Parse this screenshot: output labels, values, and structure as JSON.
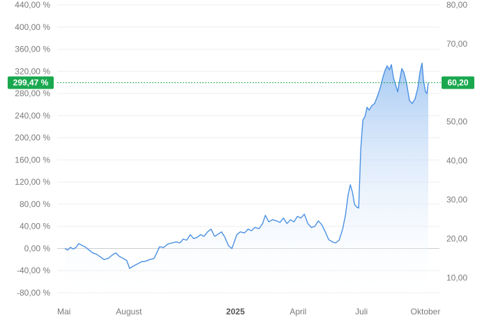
{
  "colors": {
    "line": "#4a90e2",
    "fill_top": "#9cc3f2",
    "fill_bottom": "#ffffff",
    "badge": "#1aa84f",
    "grid": "#eeeeee",
    "zero_line": "#cccccc"
  },
  "chart_data": {
    "type": "area",
    "grid": "horizontal",
    "left_axis": {
      "unit": "%",
      "ylim": [
        -80,
        440
      ],
      "ticks": [
        "440,00 %",
        "400,00 %",
        "360,00 %",
        "320,00 %",
        "280,00 %",
        "240,00 %",
        "200,00 %",
        "160,00 %",
        "120,00 %",
        "80,00 %",
        "40,00 %",
        "0,00 %",
        "-40,00 %",
        "-80,00 %"
      ],
      "tick_values": [
        440,
        400,
        360,
        320,
        280,
        240,
        200,
        160,
        120,
        80,
        40,
        0,
        -40,
        -80
      ]
    },
    "right_axis": {
      "ylim": [
        6.12,
        80.0
      ],
      "ticks": [
        "80,00",
        "70,00",
        "60,00",
        "50,00",
        "40,00",
        "30,00",
        "20,00",
        "10,00"
      ],
      "tick_values": [
        80,
        70,
        60,
        50,
        40,
        30,
        20,
        10
      ]
    },
    "x_axis": {
      "ticks": [
        {
          "label": "Mai",
          "date": "2024-05-01",
          "bold": false
        },
        {
          "label": "August",
          "date": "2024-08-01",
          "bold": false
        },
        {
          "label": "2025",
          "date": "2025-01-01",
          "bold": true
        },
        {
          "label": "April",
          "date": "2025-04-01",
          "bold": false
        },
        {
          "label": "Juli",
          "date": "2025-07-01",
          "bold": false
        },
        {
          "label": "Oktober",
          "date": "2025-10-01",
          "bold": false
        }
      ]
    },
    "current": {
      "percent_label": "299,47 %",
      "price_label": "60,20",
      "percent": 299.47,
      "price": 60.2
    },
    "series": [
      {
        "points": [
          [
            "2024-05-01",
            0
          ],
          [
            "2024-05-05",
            -3
          ],
          [
            "2024-05-09",
            2
          ],
          [
            "2024-05-13",
            -1
          ],
          [
            "2024-05-17",
            2
          ],
          [
            "2024-05-21",
            9
          ],
          [
            "2024-05-25",
            6
          ],
          [
            "2024-05-30",
            3
          ],
          [
            "2024-06-05",
            -3
          ],
          [
            "2024-06-10",
            -8
          ],
          [
            "2024-06-15",
            -10
          ],
          [
            "2024-06-21",
            -15
          ],
          [
            "2024-06-26",
            -20
          ],
          [
            "2024-07-02",
            -18
          ],
          [
            "2024-07-08",
            -12
          ],
          [
            "2024-07-13",
            -8
          ],
          [
            "2024-07-18",
            -14
          ],
          [
            "2024-07-24",
            -18
          ],
          [
            "2024-07-29",
            -22
          ],
          [
            "2024-08-02",
            -36
          ],
          [
            "2024-08-07",
            -32
          ],
          [
            "2024-08-13",
            -28
          ],
          [
            "2024-08-19",
            -24
          ],
          [
            "2024-08-25",
            -23
          ],
          [
            "2024-08-31",
            -20
          ],
          [
            "2024-09-06",
            -18
          ],
          [
            "2024-09-10",
            -8
          ],
          [
            "2024-09-14",
            3
          ],
          [
            "2024-09-20",
            2
          ],
          [
            "2024-09-26",
            8
          ],
          [
            "2024-10-02",
            10
          ],
          [
            "2024-10-08",
            12
          ],
          [
            "2024-10-13",
            10
          ],
          [
            "2024-10-18",
            17
          ],
          [
            "2024-10-23",
            15
          ],
          [
            "2024-10-28",
            25
          ],
          [
            "2024-11-02",
            18
          ],
          [
            "2024-11-07",
            20
          ],
          [
            "2024-11-12",
            25
          ],
          [
            "2024-11-17",
            22
          ],
          [
            "2024-11-22",
            30
          ],
          [
            "2024-11-27",
            35
          ],
          [
            "2024-12-02",
            22
          ],
          [
            "2024-12-06",
            25
          ],
          [
            "2024-12-12",
            30
          ],
          [
            "2024-12-17",
            20
          ],
          [
            "2024-12-22",
            5
          ],
          [
            "2024-12-27",
            0
          ],
          [
            "2025-01-03",
            25
          ],
          [
            "2025-01-08",
            30
          ],
          [
            "2025-01-14",
            28
          ],
          [
            "2025-01-19",
            35
          ],
          [
            "2025-01-24",
            32
          ],
          [
            "2025-01-29",
            38
          ],
          [
            "2025-02-04",
            36
          ],
          [
            "2025-02-09",
            45
          ],
          [
            "2025-02-13",
            60
          ],
          [
            "2025-02-18",
            48
          ],
          [
            "2025-02-23",
            52
          ],
          [
            "2025-03-01",
            50
          ],
          [
            "2025-03-06",
            47
          ],
          [
            "2025-03-11",
            55
          ],
          [
            "2025-03-16",
            45
          ],
          [
            "2025-03-21",
            52
          ],
          [
            "2025-03-26",
            48
          ],
          [
            "2025-03-31",
            58
          ],
          [
            "2025-04-05",
            55
          ],
          [
            "2025-04-10",
            62
          ],
          [
            "2025-04-15",
            45
          ],
          [
            "2025-04-20",
            38
          ],
          [
            "2025-04-25",
            40
          ],
          [
            "2025-04-30",
            50
          ],
          [
            "2025-05-05",
            43
          ],
          [
            "2025-05-10",
            30
          ],
          [
            "2025-05-15",
            16
          ],
          [
            "2025-05-20",
            12
          ],
          [
            "2025-05-25",
            10
          ],
          [
            "2025-05-30",
            15
          ],
          [
            "2025-06-04",
            35
          ],
          [
            "2025-06-08",
            60
          ],
          [
            "2025-06-12",
            98
          ],
          [
            "2025-06-15",
            115
          ],
          [
            "2025-06-18",
            102
          ],
          [
            "2025-06-21",
            80
          ],
          [
            "2025-06-24",
            75
          ],
          [
            "2025-06-27",
            73
          ],
          [
            "2025-06-30",
            180
          ],
          [
            "2025-07-03",
            232
          ],
          [
            "2025-07-06",
            238
          ],
          [
            "2025-07-09",
            255
          ],
          [
            "2025-07-12",
            250
          ],
          [
            "2025-07-16",
            258
          ],
          [
            "2025-07-20",
            262
          ],
          [
            "2025-07-24",
            275
          ],
          [
            "2025-07-28",
            290
          ],
          [
            "2025-08-01",
            310
          ],
          [
            "2025-08-04",
            322
          ],
          [
            "2025-08-07",
            330
          ],
          [
            "2025-08-10",
            323
          ],
          [
            "2025-08-13",
            332
          ],
          [
            "2025-08-16",
            308
          ],
          [
            "2025-08-19",
            296
          ],
          [
            "2025-08-22",
            283
          ],
          [
            "2025-08-25",
            305
          ],
          [
            "2025-08-28",
            325
          ],
          [
            "2025-08-31",
            318
          ],
          [
            "2025-09-04",
            297
          ],
          [
            "2025-09-08",
            267
          ],
          [
            "2025-09-12",
            262
          ],
          [
            "2025-09-16",
            270
          ],
          [
            "2025-09-20",
            290
          ],
          [
            "2025-09-23",
            318
          ],
          [
            "2025-09-26",
            335
          ],
          [
            "2025-09-28",
            305
          ],
          [
            "2025-10-01",
            283
          ],
          [
            "2025-10-03",
            280
          ],
          [
            "2025-10-05",
            299.47
          ]
        ]
      }
    ]
  }
}
